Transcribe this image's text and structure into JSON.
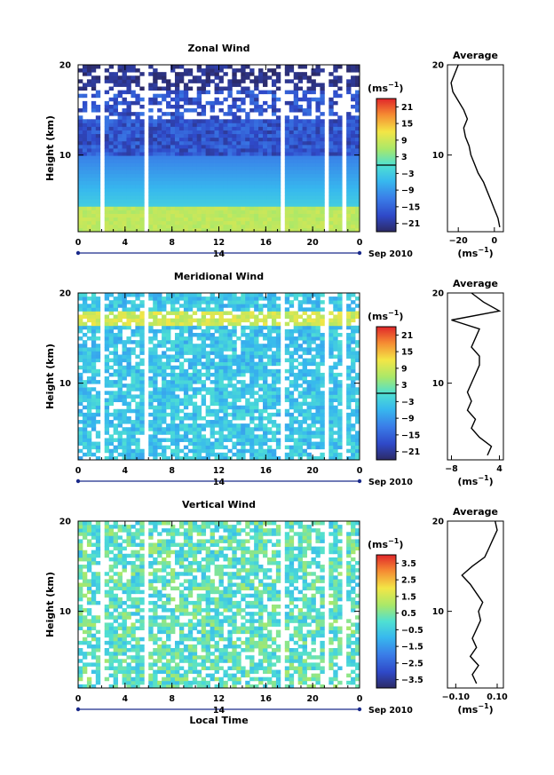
{
  "chart_data": [
    {
      "type": "heatmap",
      "panel": "zonal",
      "title": "Zonal Wind",
      "ylabel": "Height (km)",
      "xlabel": "",
      "x_ticks": [
        "0",
        "4",
        "8",
        "12",
        "16",
        "20",
        "0"
      ],
      "x_range": [
        0,
        24
      ],
      "y_ticks": [
        "20",
        "10"
      ],
      "y_tick_values": [
        20,
        10
      ],
      "y_range": [
        1.5,
        20
      ],
      "date_day": "14",
      "date_month": "Sep 2010",
      "colorbar": {
        "unit": "(ms",
        "unit_exp": "−1",
        "unit_close": ")",
        "range": [
          -24,
          24
        ],
        "tick_labels": [
          "21",
          "15",
          "9",
          "3",
          "−3",
          "−9",
          "−15",
          "−21"
        ],
        "tick_values": [
          21,
          15,
          9,
          3,
          -3,
          -9,
          -15,
          -21
        ],
        "zero_line": 0
      },
      "profile": {
        "title": "Average",
        "xlabel": "(ms",
        "xlabel_exp": "−1",
        "xlabel_close": ")",
        "x_ticks": [
          "−20",
          "0"
        ],
        "x_tick_values": [
          -20,
          0
        ],
        "x_range": [
          -26,
          5
        ],
        "y_ticks": [
          "20",
          "10"
        ],
        "heights": [
          2,
          3,
          4,
          5,
          6,
          7,
          8,
          9,
          10,
          11,
          12,
          13,
          14,
          15,
          16,
          17,
          18,
          19,
          20
        ],
        "values": [
          3,
          2,
          0,
          -2,
          -4,
          -6,
          -9,
          -11,
          -13,
          -14,
          -16,
          -17,
          -15,
          -17,
          -20,
          -23,
          -24,
          -22,
          -20
        ]
      }
    },
    {
      "type": "heatmap",
      "panel": "meridional",
      "title": "Meridional Wind",
      "ylabel": "Height (km)",
      "xlabel": "",
      "x_ticks": [
        "0",
        "4",
        "8",
        "12",
        "16",
        "20",
        "0"
      ],
      "x_range": [
        0,
        24
      ],
      "y_ticks": [
        "20",
        "10"
      ],
      "y_tick_values": [
        20,
        10
      ],
      "y_range": [
        1.5,
        20
      ],
      "date_day": "14",
      "date_month": "Sep 2010",
      "colorbar": {
        "unit": "(ms",
        "unit_exp": "−1",
        "unit_close": ")",
        "range": [
          -24,
          24
        ],
        "tick_labels": [
          "21",
          "15",
          "9",
          "3",
          "−3",
          "−9",
          "−15",
          "−21"
        ],
        "tick_values": [
          21,
          15,
          9,
          3,
          -3,
          -9,
          -15,
          -21
        ],
        "zero_line": 0
      },
      "profile": {
        "title": "Average",
        "xlabel": "(ms",
        "xlabel_exp": "−1",
        "xlabel_close": ")",
        "x_ticks": [
          "−8",
          "4"
        ],
        "x_tick_values": [
          -8,
          4
        ],
        "x_range": [
          -9,
          5
        ],
        "y_ticks": [
          "20",
          "10"
        ],
        "heights": [
          2,
          3,
          4,
          5,
          6,
          7,
          8,
          9,
          10,
          11,
          12,
          13,
          14,
          15,
          16,
          17,
          18,
          19,
          20
        ],
        "values": [
          1,
          2,
          -1,
          -3,
          -2,
          -4,
          -3,
          -4,
          -3,
          -2,
          -1,
          -1,
          -3,
          -2,
          -1,
          -8,
          4,
          0,
          -3
        ]
      }
    },
    {
      "type": "heatmap",
      "panel": "vertical",
      "title": "Vertical Wind",
      "ylabel": "Height (km)",
      "xlabel": "Local Time",
      "x_ticks": [
        "0",
        "4",
        "8",
        "12",
        "16",
        "20",
        "0"
      ],
      "x_range": [
        0,
        24
      ],
      "y_ticks": [
        "20",
        "10"
      ],
      "y_tick_values": [
        20,
        10
      ],
      "y_range": [
        1.5,
        20
      ],
      "date_day": "14",
      "date_month": "Sep 2010",
      "colorbar": {
        "unit": "(ms",
        "unit_exp": "−1",
        "unit_close": ")",
        "range": [
          -4,
          4
        ],
        "tick_labels": [
          "3.5",
          "2.5",
          "1.5",
          "0.5",
          "−0.5",
          "−1.5",
          "−2.5",
          "−3.5"
        ],
        "tick_values": [
          3.5,
          2.5,
          1.5,
          0.5,
          -0.5,
          -1.5,
          -2.5,
          -3.5
        ],
        "zero_line": null
      },
      "profile": {
        "title": "Average",
        "xlabel": "(ms",
        "xlabel_exp": "−1",
        "xlabel_close": ")",
        "x_ticks": [
          "−0.10",
          "0.10"
        ],
        "x_tick_values": [
          -0.1,
          0.1
        ],
        "x_range": [
          -0.14,
          0.13
        ],
        "y_ticks": [
          "20",
          "10"
        ],
        "heights": [
          2,
          3,
          4,
          5,
          6,
          7,
          8,
          9,
          10,
          11,
          12,
          13,
          14,
          15,
          16,
          17,
          18,
          19,
          20
        ],
        "values": [
          0.0,
          -0.02,
          0.01,
          -0.03,
          0.0,
          -0.02,
          0.0,
          0.02,
          0.01,
          0.03,
          0.0,
          -0.03,
          -0.07,
          -0.02,
          0.04,
          0.06,
          0.08,
          0.1,
          0.09
        ]
      }
    }
  ]
}
